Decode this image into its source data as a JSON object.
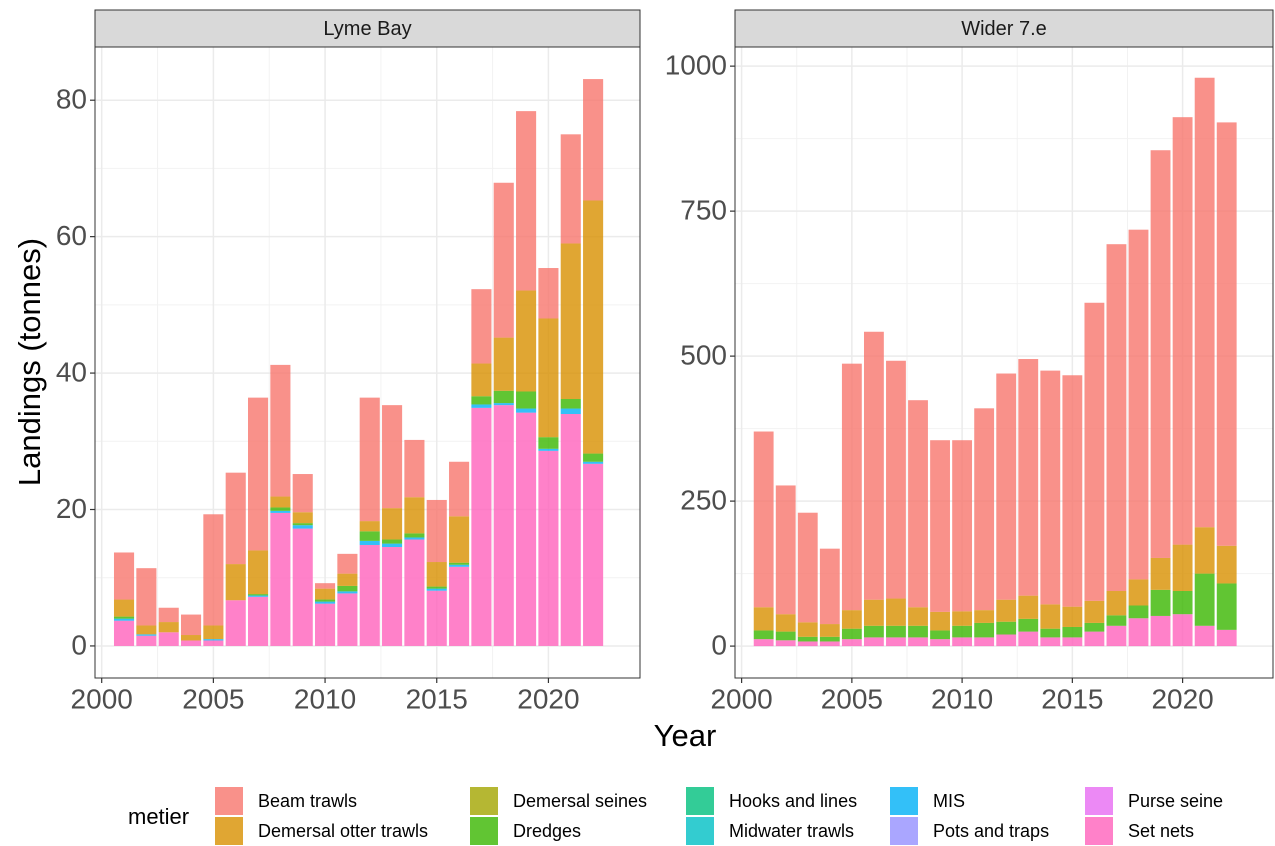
{
  "chart_data": [
    {
      "type": "bar",
      "stacked": true,
      "title": "Lyme Bay",
      "x": [
        2001,
        2002,
        2003,
        2004,
        2005,
        2006,
        2007,
        2008,
        2009,
        2010,
        2011,
        2012,
        2013,
        2014,
        2015,
        2016,
        2017,
        2018,
        2019,
        2020,
        2021,
        2022
      ],
      "series": [
        {
          "name": "Beam trawls",
          "color": "#F8766D",
          "values": [
            6.9,
            8.4,
            2.1,
            3.0,
            16.3,
            13.4,
            22.4,
            19.3,
            5.6,
            0.8,
            2.9,
            18.1,
            15.1,
            8.4,
            9.1,
            8.0,
            10.9,
            22.7,
            26.3,
            7.4,
            16.0,
            17.8
          ]
        },
        {
          "name": "Demersal otter trawls",
          "color": "#D89000",
          "values": [
            2.5,
            1.3,
            1.5,
            0.8,
            2.0,
            5.3,
            6.4,
            1.6,
            1.6,
            1.6,
            1.8,
            1.5,
            4.6,
            5.3,
            3.6,
            6.8,
            4.8,
            7.8,
            14.8,
            17.4,
            22.8,
            37.1
          ]
        },
        {
          "name": "Demersal seines",
          "color": "#A3A500",
          "values": [
            0,
            0,
            0,
            0,
            0,
            0,
            0,
            0,
            0,
            0,
            0,
            0,
            0,
            0,
            0,
            0,
            0,
            0,
            0,
            0,
            0,
            0
          ]
        },
        {
          "name": "Dredges",
          "color": "#39B600",
          "values": [
            0.3,
            0,
            0,
            0,
            0,
            0,
            0.2,
            0.5,
            0.3,
            0.3,
            0.8,
            1.4,
            0.6,
            0.6,
            0.3,
            0.3,
            1.2,
            1.8,
            2.5,
            1.7,
            1.4,
            1.2
          ]
        },
        {
          "name": "Hooks and lines",
          "color": "#00BF7D",
          "values": [
            0,
            0,
            0,
            0,
            0,
            0,
            0,
            0,
            0,
            0,
            0,
            0,
            0,
            0,
            0,
            0,
            0,
            0,
            0,
            0,
            0,
            0
          ]
        },
        {
          "name": "Midwater trawls",
          "color": "#00BFC4",
          "values": [
            0,
            0,
            0,
            0,
            0,
            0,
            0,
            0,
            0,
            0,
            0,
            0,
            0,
            0,
            0,
            0,
            0,
            0,
            0,
            0,
            0,
            0
          ]
        },
        {
          "name": "MIS",
          "color": "#00B0F6",
          "values": [
            0.3,
            0.2,
            0,
            0,
            0.2,
            0,
            0.2,
            0.3,
            0.5,
            0.3,
            0.3,
            0.6,
            0.5,
            0.3,
            0.3,
            0.3,
            0.5,
            0.3,
            0.6,
            0.3,
            0.8,
            0.3
          ]
        },
        {
          "name": "Pots and traps",
          "color": "#9590FF",
          "values": [
            0,
            0,
            0,
            0,
            0,
            0,
            0,
            0,
            0,
            0,
            0,
            0,
            0,
            0,
            0,
            0,
            0,
            0,
            0,
            0,
            0,
            0
          ]
        },
        {
          "name": "Purse seine",
          "color": "#E76BF3",
          "values": [
            0,
            0,
            0,
            0,
            0,
            0,
            0,
            0,
            0,
            0,
            0,
            0,
            0,
            0,
            0,
            0,
            0,
            0,
            0,
            0,
            0,
            0
          ]
        },
        {
          "name": "Set nets",
          "color": "#FF62BC",
          "values": [
            3.7,
            1.5,
            2.0,
            0.8,
            0.8,
            6.7,
            7.2,
            19.5,
            17.2,
            6.2,
            7.7,
            14.8,
            14.5,
            15.6,
            8.1,
            11.6,
            34.9,
            35.3,
            34.2,
            28.6,
            34.0,
            26.7
          ]
        }
      ],
      "xlim": [
        1999.7,
        2024.1
      ],
      "xticks": [
        2000,
        2005,
        2010,
        2015,
        2020
      ],
      "ylim": [
        -4.7,
        87.8
      ],
      "yticks": [
        0,
        20,
        40,
        60,
        80
      ],
      "grid": true
    },
    {
      "type": "bar",
      "stacked": true,
      "title": "Wider 7.e",
      "x": [
        2001,
        2002,
        2003,
        2004,
        2005,
        2006,
        2007,
        2008,
        2009,
        2010,
        2011,
        2012,
        2013,
        2014,
        2015,
        2016,
        2017,
        2018,
        2019,
        2020,
        2021,
        2022
      ],
      "series": [
        {
          "name": "Beam trawls",
          "color": "#F8766D",
          "values": [
            303,
            222,
            189,
            130,
            425,
            462,
            410,
            357,
            296,
            295,
            348,
            390,
            408,
            403,
            399,
            514,
            598,
            603,
            703,
            737,
            775,
            730
          ]
        },
        {
          "name": "Demersal otter trawls",
          "color": "#D89000",
          "values": [
            40,
            30,
            25,
            22,
            32,
            45,
            47,
            32,
            32,
            25,
            22,
            38,
            40,
            42,
            35,
            38,
            42,
            45,
            55,
            80,
            80,
            65
          ]
        },
        {
          "name": "Demersal seines",
          "color": "#A3A500",
          "values": [
            0,
            0,
            0,
            0,
            0,
            0,
            0,
            0,
            0,
            0,
            0,
            0,
            0,
            0,
            0,
            0,
            0,
            0,
            0,
            0,
            0,
            0
          ]
        },
        {
          "name": "Dredges",
          "color": "#39B600",
          "values": [
            15,
            15,
            8,
            8,
            18,
            20,
            20,
            20,
            15,
            20,
            25,
            22,
            22,
            15,
            18,
            15,
            18,
            22,
            45,
            40,
            90,
            80
          ]
        },
        {
          "name": "Hooks and lines",
          "color": "#00BF7D",
          "values": [
            0,
            0,
            0,
            0,
            0,
            0,
            0,
            0,
            0,
            0,
            0,
            0,
            0,
            0,
            0,
            0,
            0,
            0,
            0,
            0,
            0,
            0
          ]
        },
        {
          "name": "Midwater trawls",
          "color": "#00BFC4",
          "values": [
            0,
            0,
            0,
            0,
            0,
            0,
            0,
            0,
            0,
            0,
            0,
            0,
            0,
            0,
            0,
            0,
            0,
            0,
            0,
            0,
            0,
            0
          ]
        },
        {
          "name": "MIS",
          "color": "#00B0F6",
          "values": [
            0,
            0,
            0,
            0,
            0,
            0,
            0,
            0,
            0,
            0,
            0,
            0,
            0,
            0,
            0,
            0,
            0,
            0,
            0,
            0,
            0,
            0
          ]
        },
        {
          "name": "Pots and traps",
          "color": "#9590FF",
          "values": [
            0,
            0,
            0,
            0,
            0,
            0,
            0,
            0,
            0,
            0,
            0,
            0,
            0,
            0,
            0,
            0,
            0,
            0,
            0,
            0,
            0,
            0
          ]
        },
        {
          "name": "Purse seine",
          "color": "#E76BF3",
          "values": [
            0,
            0,
            0,
            0,
            0,
            0,
            0,
            0,
            0,
            0,
            0,
            0,
            0,
            0,
            0,
            0,
            0,
            0,
            0,
            0,
            0,
            0
          ]
        },
        {
          "name": "Set nets",
          "color": "#FF62BC",
          "values": [
            12,
            10,
            8,
            8,
            12,
            15,
            15,
            15,
            12,
            15,
            15,
            20,
            25,
            15,
            15,
            25,
            35,
            48,
            52,
            55,
            35,
            28
          ]
        }
      ],
      "xlim": [
        1999.7,
        2024.1
      ],
      "xticks": [
        2000,
        2005,
        2010,
        2015,
        2020
      ],
      "ylim": [
        -55,
        1033
      ],
      "yticks": [
        0,
        250,
        500,
        750,
        1000
      ],
      "grid": true
    }
  ],
  "x_label": "Year",
  "y_label": "Landings (tonnes)",
  "legend": {
    "title": "metier",
    "position": "bottom"
  }
}
